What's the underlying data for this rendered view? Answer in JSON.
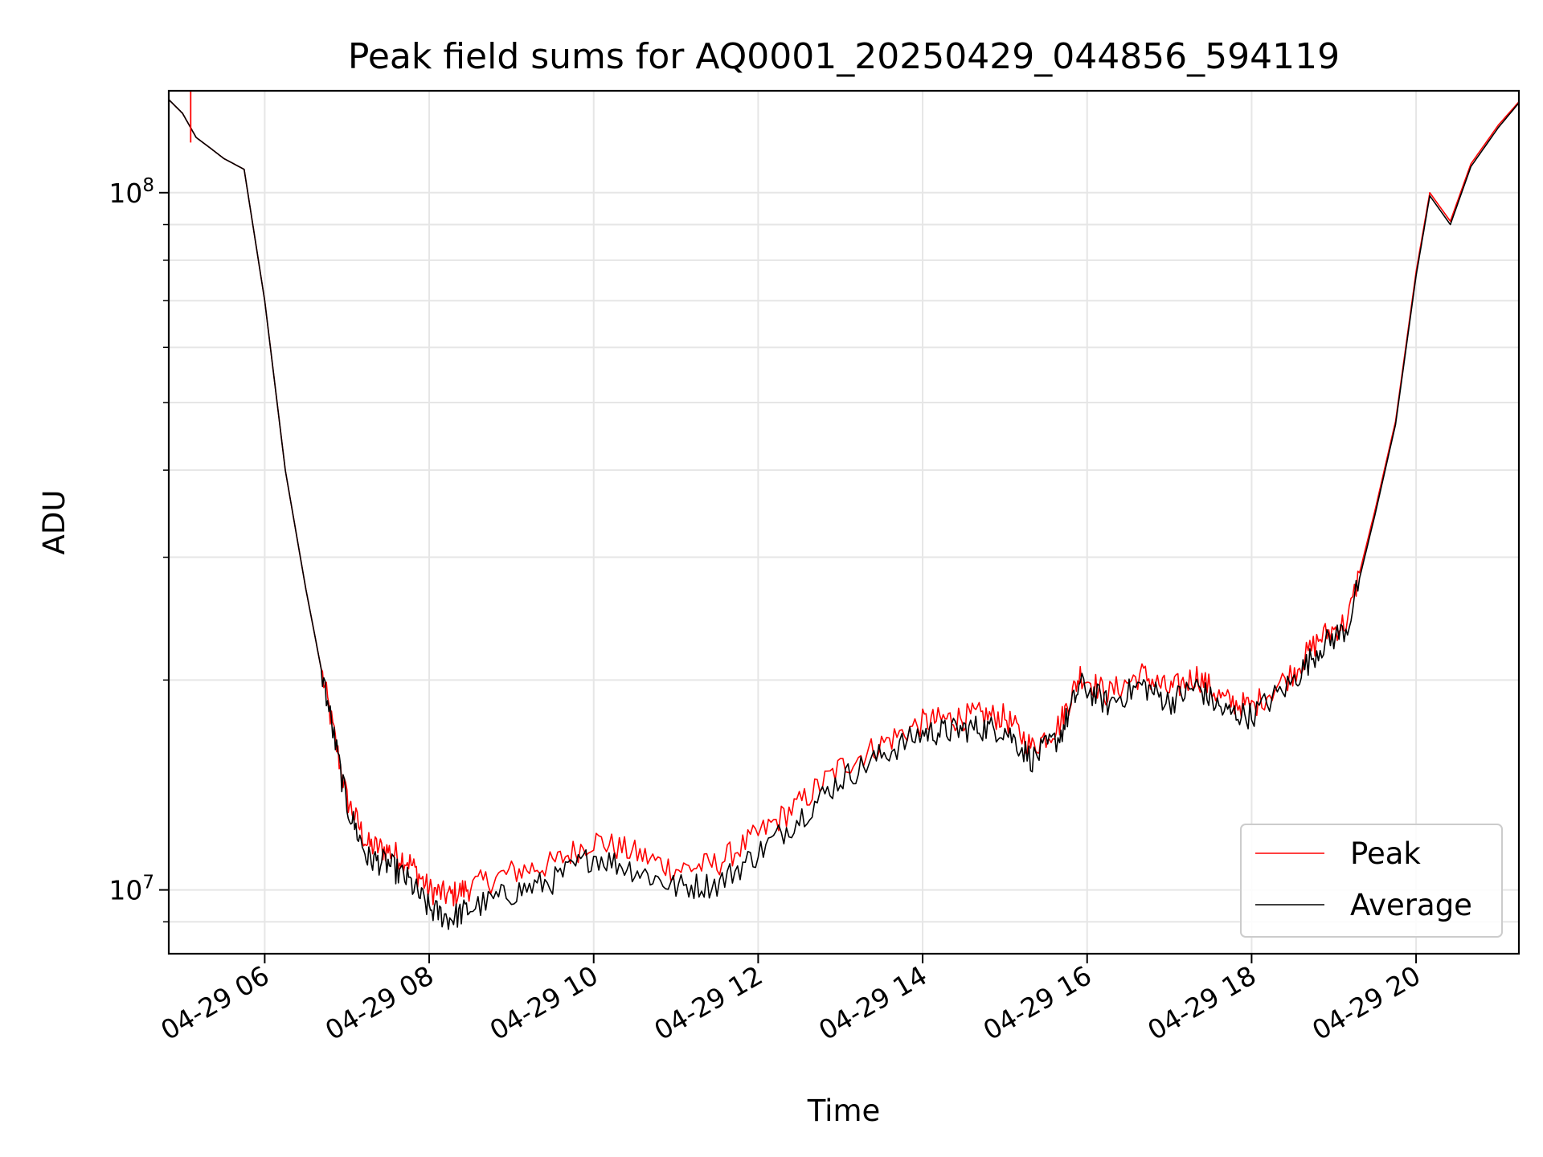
{
  "chart_data": {
    "type": "line",
    "title": "Peak field sums for AQ0001_20250429_044856_594119",
    "xlabel": "Time",
    "ylabel": "ADU",
    "yscale": "log",
    "ylim": [
      8100000,
      140000000
    ],
    "xlim": [
      "04-29 04:50",
      "04-29 21:15"
    ],
    "grid": true,
    "legend_position": "lower right",
    "x_ticks": [
      "04-29 06",
      "04-29 08",
      "04-29 10",
      "04-29 12",
      "04-29 14",
      "04-29 16",
      "04-29 18",
      "04-29 20"
    ],
    "x_tick_hours": [
      6,
      8,
      10,
      12,
      14,
      16,
      18,
      20
    ],
    "y_tick_labels": [
      {
        "value": 10000000,
        "base": "10",
        "exp": "7"
      },
      {
        "value": 100000000,
        "base": "10",
        "exp": "8"
      }
    ],
    "y_minor_ticks": [
      9000000,
      20000000,
      30000000,
      40000000,
      50000000,
      60000000,
      70000000,
      80000000,
      90000000
    ],
    "x": [
      "04-29 04:50",
      "04-29 05:00",
      "04-29 05:10",
      "04-29 05:20",
      "04-29 05:30",
      "04-29 05:45",
      "04-29 06:00",
      "04-29 06:15",
      "04-29 06:30",
      "04-29 06:45",
      "04-29 07:00",
      "04-29 07:15",
      "04-29 07:30",
      "04-29 07:45",
      "04-29 08:00",
      "04-29 08:15",
      "04-29 08:30",
      "04-29 09:00",
      "04-29 09:30",
      "04-29 10:00",
      "04-29 10:30",
      "04-29 11:00",
      "04-29 11:30",
      "04-29 12:00",
      "04-29 12:30",
      "04-29 13:00",
      "04-29 13:30",
      "04-29 14:00",
      "04-29 14:20",
      "04-29 14:40",
      "04-29 15:00",
      "04-29 15:20",
      "04-29 15:40",
      "04-29 15:55",
      "04-29 16:15",
      "04-29 16:40",
      "04-29 17:00",
      "04-29 17:20",
      "04-29 17:40",
      "04-29 18:00",
      "04-29 18:30",
      "04-29 18:50",
      "04-29 19:10",
      "04-29 19:30",
      "04-29 19:45",
      "04-29 20:00",
      "04-29 20:10",
      "04-29 20:25",
      "04-29 20:40",
      "04-29 21:00",
      "04-29 21:15"
    ],
    "series": [
      {
        "name": "Peak",
        "color": "#ff0000",
        "values": [
          136000000,
          130000000,
          120000000,
          116000000,
          112000000,
          108000000,
          70000000,
          40000000,
          27000000,
          19000000,
          13500000,
          11600000,
          11400000,
          11000000,
          10000000,
          9800000,
          10100000,
          10600000,
          10900000,
          11800000,
          11300000,
          10700000,
          10900000,
          12000000,
          13300000,
          15000000,
          16200000,
          17400000,
          17600000,
          17800000,
          17700000,
          16000000,
          17300000,
          20400000,
          19100000,
          20400000,
          19300000,
          20300000,
          18700000,
          18300000,
          20500000,
          23000000,
          24300000,
          35000000,
          47000000,
          77000000,
          100000000,
          91000000,
          110000000,
          125000000,
          135000000
        ]
      },
      {
        "name": "Average",
        "color": "#000000",
        "values": [
          136000000,
          130000000,
          120000000,
          116000000,
          112000000,
          108000000,
          70000000,
          40000000,
          27000000,
          19000000,
          13200000,
          11100000,
          10900000,
          10300000,
          9400000,
          9100000,
          9400000,
          9900000,
          10300000,
          11200000,
          10700000,
          10100000,
          10200000,
          11300000,
          12700000,
          14400000,
          15600000,
          16800000,
          16900000,
          17100000,
          17000000,
          15400000,
          16600000,
          19700000,
          18500000,
          19700000,
          18600000,
          19600000,
          18000000,
          17800000,
          19900000,
          22300000,
          23800000,
          34500000,
          46500000,
          76000000,
          99000000,
          90000000,
          109000000,
          124000000,
          134500000
        ]
      }
    ],
    "annotations": [
      {
        "x": "04-29 05:06",
        "series": "Peak",
        "note": "spike to top of axis"
      }
    ]
  }
}
